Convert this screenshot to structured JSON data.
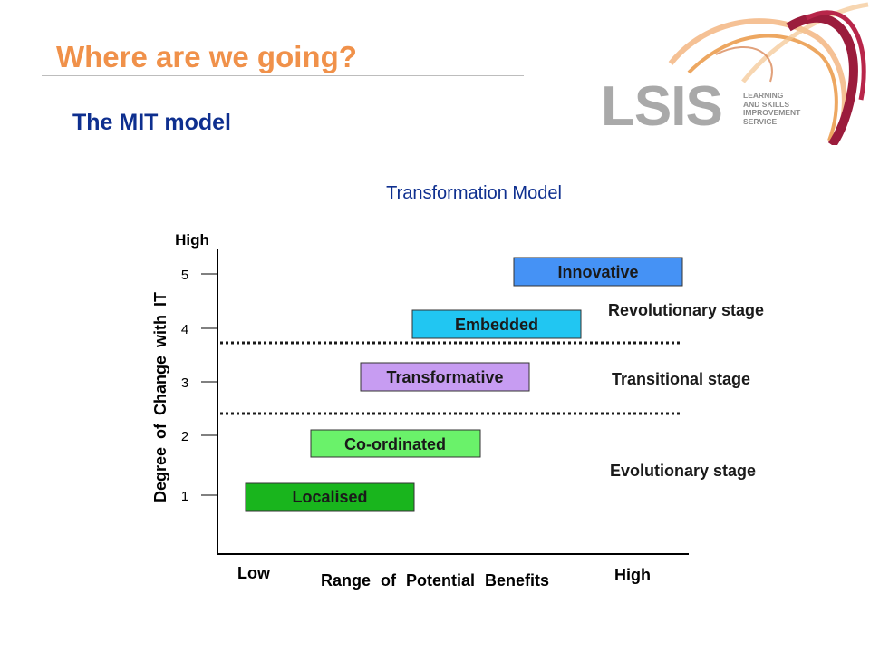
{
  "slide": {
    "title": "Where are we going?",
    "subtitle": "The MIT model"
  },
  "logo": {
    "name": "LSIS",
    "tagline": [
      "LEARNING",
      "AND SKILLS",
      "IMPROVEMENT",
      "SERVICE"
    ]
  },
  "diagram": {
    "title": "Transformation Model",
    "y_axis_label": "Degree of Change with IT",
    "y_axis_high": "High",
    "x_axis_label": "Range of Potential Benefits",
    "x_axis_low": "Low",
    "x_axis_high": "High",
    "y_ticks": [
      "1",
      "2",
      "3",
      "4",
      "5"
    ],
    "levels": [
      {
        "label": "Localised",
        "color": "#19b51d"
      },
      {
        "label": "Co-ordinated",
        "color": "#6af26a"
      },
      {
        "label": "Transformative",
        "color": "#c79cf2"
      },
      {
        "label": "Embedded",
        "color": "#21c6f2"
      },
      {
        "label": "Innovative",
        "color": "#4592f5"
      }
    ],
    "stages": [
      {
        "label": "Revolutionary stage"
      },
      {
        "label": "Transitional stage"
      },
      {
        "label": "Evolutionary stage"
      }
    ]
  }
}
